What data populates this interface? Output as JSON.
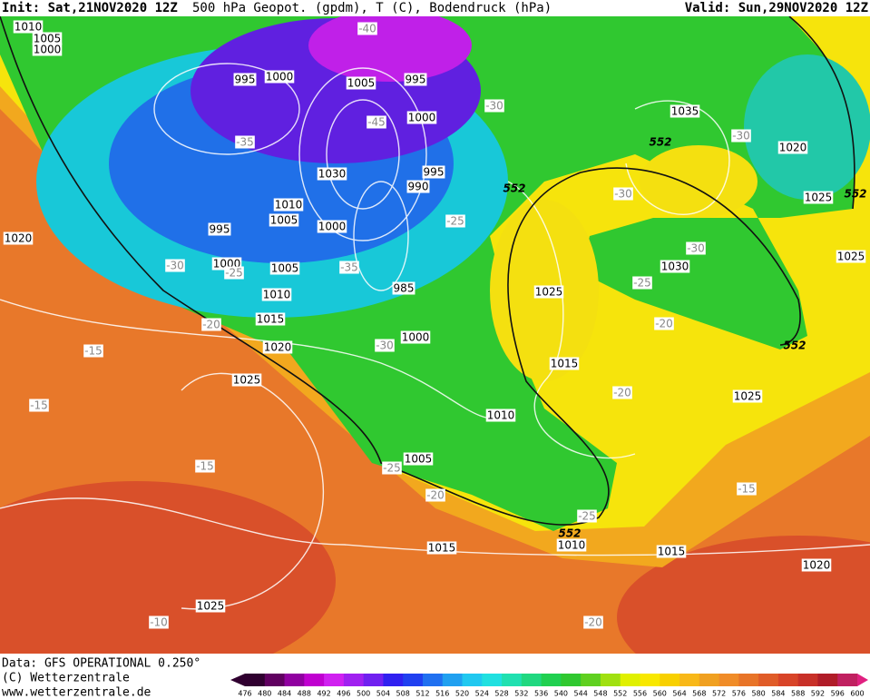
{
  "header": {
    "init": "Init: Sat,21NOV2020 12Z",
    "title": "500 hPa Geopot. (gpdm), T (C), Bodendruck (hPa)",
    "valid": "Valid: Sun,29NOV2020 12Z"
  },
  "map": {
    "isobar_labels": [
      "1010",
      "1005",
      "1000",
      "995",
      "1000",
      "1005",
      "995",
      "1000",
      "1035",
      "1020",
      "1025",
      "995",
      "990",
      "1030",
      "1010",
      "1005",
      "1000",
      "995",
      "1020",
      "1000",
      "1005",
      "1010",
      "985",
      "1025",
      "1030",
      "1025",
      "1015",
      "1000",
      "1020",
      "1015",
      "1025",
      "1025",
      "1010",
      "1005",
      "1010",
      "1015",
      "1015",
      "1020",
      "1025"
    ],
    "temperature_labels": [
      "-40",
      "-45",
      "-35",
      "-30",
      "-30",
      "-25",
      "-30",
      "-30",
      "-25",
      "-30",
      "-25",
      "-35",
      "-20",
      "-20",
      "-30",
      "-15",
      "-15",
      "-20",
      "-15",
      "-25",
      "-20",
      "-25",
      "-15",
      "-10",
      "-20"
    ],
    "height_labels": [
      "552",
      "552",
      "552",
      "552",
      "552"
    ]
  },
  "footer": {
    "data": "Data: GFS OPERATIONAL 0.250°",
    "copyright": "(C) Wetterzentrale",
    "url": "www.wetterzentrale.de"
  },
  "colorbar": {
    "labels": [
      476,
      480,
      484,
      488,
      492,
      496,
      500,
      504,
      508,
      512,
      516,
      520,
      524,
      528,
      532,
      536,
      540,
      544,
      548,
      552,
      556,
      560,
      564,
      568,
      572,
      576,
      580,
      584,
      588,
      592,
      596,
      600
    ]
  }
}
